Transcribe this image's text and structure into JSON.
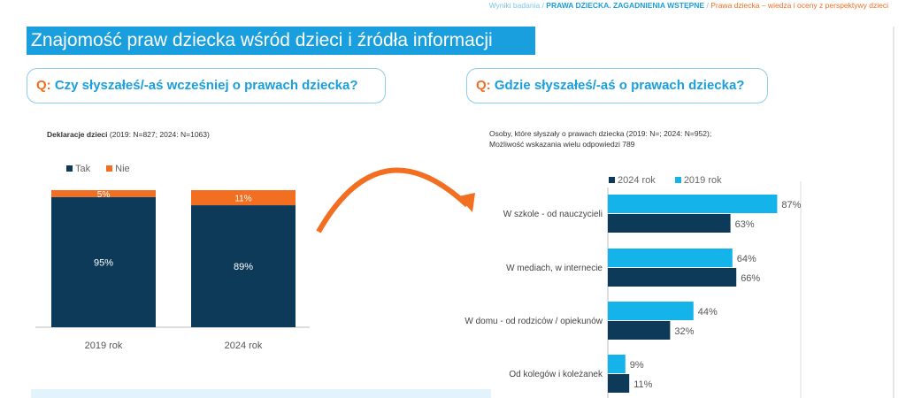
{
  "breadcrumb": {
    "root": "Wyniki badania",
    "section": "PRAWA DZIECKA. ZAGADNIENIA WSTĘPNE",
    "page": "Prawa dziecka – wiedza i oceny z perspektywy dzieci"
  },
  "title": "Znajomość praw dziecka wśród dzieci i źródła informacji",
  "q_prefix": "Q:",
  "left_question": "Czy słyszałeś/-aś wcześniej o prawach dziecka?",
  "right_question": "Gdzie słyszałeś/-aś o prawach dziecka?",
  "left_note_bold": "Deklaracje dzieci",
  "left_note_rest": "(2019: N=827; 2024: N=1063)",
  "right_note_1": "Osoby, które słyszały o prawach dziecka (2019: N=; 2024: N=952);",
  "right_note_2": "Możliwość wskazania wielu odpowiedzi 789",
  "colors": {
    "dark": "#0e3a5a",
    "orange": "#f26f21",
    "light": "#14b4ea",
    "accent": "#1a9fde"
  },
  "chart_data": [
    {
      "type": "bar",
      "stacked": true,
      "categories": [
        "2019 rok",
        "2024 rok"
      ],
      "series": [
        {
          "name": "Tak",
          "values": [
            95,
            89
          ],
          "labels": [
            "95%",
            "89%"
          ]
        },
        {
          "name": "Nie",
          "values": [
            5,
            11
          ],
          "labels": [
            "5%",
            "11%"
          ]
        }
      ],
      "ylim": [
        0,
        100
      ],
      "legend": "top-left"
    },
    {
      "type": "bar",
      "orientation": "horizontal",
      "categories": [
        "W szkole - od nauczycieli",
        "W mediach, w internecie",
        "W domu - od rodziców / opiekunów",
        "Od kolegów i koleżanek"
      ],
      "series": [
        {
          "name": "2024 rok",
          "values": [
            63,
            66,
            32,
            11
          ],
          "labels": [
            "63%",
            "66%",
            "32%",
            "11%"
          ]
        },
        {
          "name": "2019 rok",
          "values": [
            87,
            64,
            44,
            9
          ],
          "labels": [
            "87%",
            "64%",
            "44%",
            "9%"
          ]
        }
      ],
      "xlim": [
        0,
        100
      ],
      "legend": "top"
    }
  ]
}
